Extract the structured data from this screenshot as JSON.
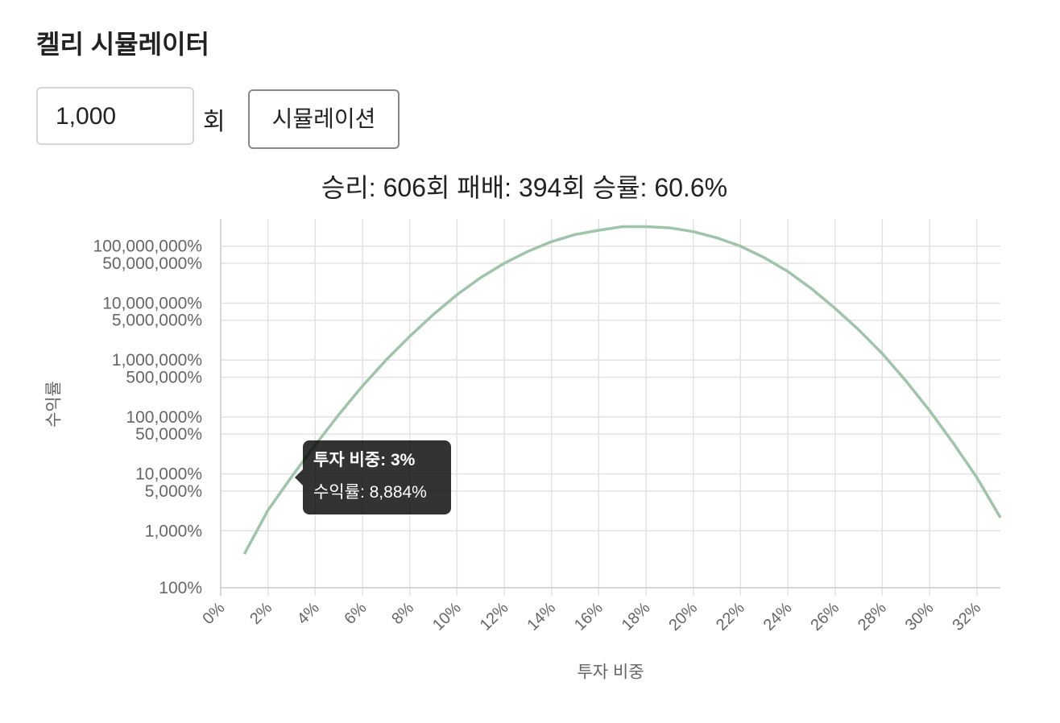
{
  "header": {
    "title": "켈리 시뮬레이터"
  },
  "form": {
    "input_value": "1,000",
    "unit": "회",
    "button": "시뮬레이션"
  },
  "summary": "승리: 606회 패배: 394회 승률: 60.6%",
  "chart_data": {
    "type": "line",
    "x_label": "투자 비중",
    "y_label": "수익률",
    "x": [
      1,
      2,
      3,
      4,
      5,
      6,
      7,
      8,
      9,
      10,
      11,
      12,
      13,
      14,
      15,
      16,
      17,
      18,
      19,
      20,
      21,
      22,
      23,
      24,
      25,
      26,
      27,
      28,
      29,
      30,
      31,
      32,
      33
    ],
    "values": [
      390,
      2300,
      8884,
      32000,
      110000,
      350000,
      1000000,
      2600000,
      6300000,
      14000000,
      28000000,
      50000000,
      81000000,
      120000000,
      160000000,
      190000000,
      220000000,
      220000000,
      210000000,
      180000000,
      140000000,
      100000000,
      63000000,
      36000000,
      18000000,
      8100000,
      3400000,
      1300000,
      430000,
      130000,
      35000,
      8700,
      1700
    ],
    "color": "#9fc4a9",
    "xlim": [
      0,
      33
    ],
    "xticks": [
      {
        "value": 0,
        "label": "0%"
      },
      {
        "value": 2,
        "label": "2%"
      },
      {
        "value": 4,
        "label": "4%"
      },
      {
        "value": 6,
        "label": "6%"
      },
      {
        "value": 8,
        "label": "8%"
      },
      {
        "value": 10,
        "label": "10%"
      },
      {
        "value": 12,
        "label": "12%"
      },
      {
        "value": 14,
        "label": "14%"
      },
      {
        "value": 16,
        "label": "16%"
      },
      {
        "value": 18,
        "label": "18%"
      },
      {
        "value": 20,
        "label": "20%"
      },
      {
        "value": 22,
        "label": "22%"
      },
      {
        "value": 24,
        "label": "24%"
      },
      {
        "value": 26,
        "label": "26%"
      },
      {
        "value": 28,
        "label": "28%"
      },
      {
        "value": 30,
        "label": "30%"
      },
      {
        "value": 32,
        "label": "32%"
      }
    ],
    "ylim": [
      100,
      300000000
    ],
    "yticks": [
      {
        "value": 100,
        "label": "100%"
      },
      {
        "value": 1000,
        "label": "1,000%"
      },
      {
        "value": 5000,
        "label": "5,000%"
      },
      {
        "value": 10000,
        "label": "10,000%"
      },
      {
        "value": 50000,
        "label": "50,000%"
      },
      {
        "value": 100000,
        "label": "100,000%"
      },
      {
        "value": 500000,
        "label": "500,000%"
      },
      {
        "value": 1000000,
        "label": "1,000,000%"
      },
      {
        "value": 5000000,
        "label": "5,000,000%"
      },
      {
        "value": 10000000,
        "label": "10,000,000%"
      },
      {
        "value": 50000000,
        "label": "50,000,000%"
      },
      {
        "value": 100000000,
        "label": "100,000,000%"
      }
    ],
    "log_scale": true,
    "grid": true,
    "tooltip": {
      "title": "투자 비중: 3%",
      "body": "수익률: 8,884%"
    }
  }
}
